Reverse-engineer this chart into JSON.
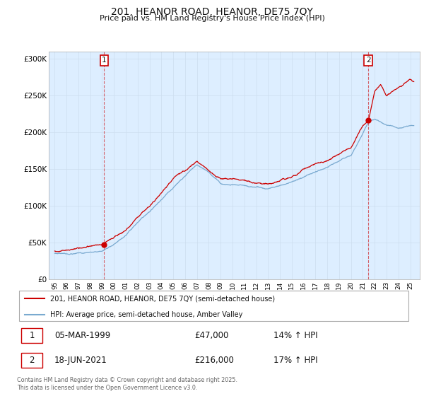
{
  "title": "201, HEANOR ROAD, HEANOR, DE75 7QY",
  "subtitle": "Price paid vs. HM Land Registry's House Price Index (HPI)",
  "ylabel_ticks": [
    "£0",
    "£50K",
    "£100K",
    "£150K",
    "£200K",
    "£250K",
    "£300K"
  ],
  "ytick_values": [
    0,
    50000,
    100000,
    150000,
    200000,
    250000,
    300000
  ],
  "ylim": [
    0,
    310000
  ],
  "xlim_start": 1994.5,
  "xlim_end": 2025.8,
  "line1_color": "#cc0000",
  "line2_color": "#7aaad0",
  "chart_bg": "#ddeeff",
  "line1_label": "201, HEANOR ROAD, HEANOR, DE75 7QY (semi-detached house)",
  "line2_label": "HPI: Average price, semi-detached house, Amber Valley",
  "marker1_x": 1999.18,
  "marker1_y": 47000,
  "marker2_x": 2021.46,
  "marker2_y": 216000,
  "annotation1_date": "05-MAR-1999",
  "annotation1_price": "£47,000",
  "annotation1_pct": "14% ↑ HPI",
  "annotation2_date": "18-JUN-2021",
  "annotation2_price": "£216,000",
  "annotation2_pct": "17% ↑ HPI",
  "footer": "Contains HM Land Registry data © Crown copyright and database right 2025.\nThis data is licensed under the Open Government Licence v3.0.",
  "background_color": "#ffffff",
  "grid_color": "#ccddee"
}
